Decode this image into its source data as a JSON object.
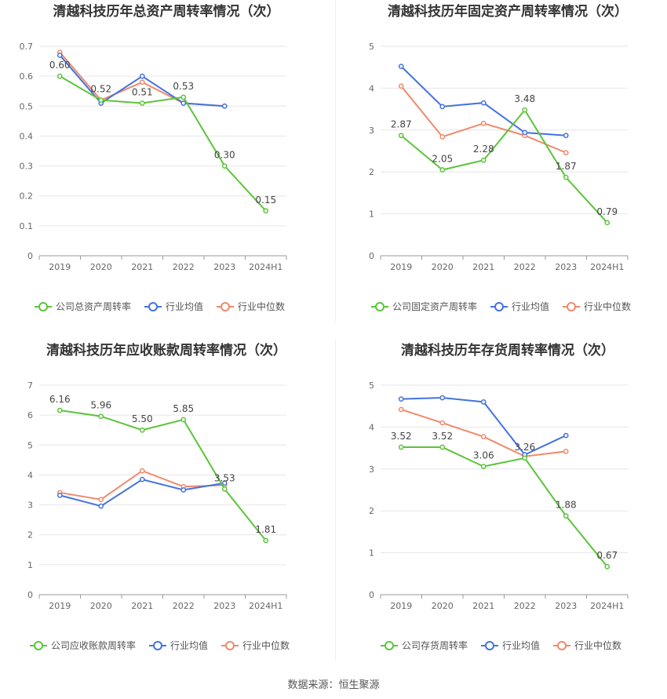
{
  "colors": {
    "company": "#5cc43a",
    "avg": "#4472e0",
    "median": "#f0896a",
    "grid": "#e6e6e6",
    "axis": "#999999",
    "text": "#666666",
    "label": "#444444"
  },
  "source_text": "数据来源：恒生聚源",
  "chart_data": [
    {
      "type": "line",
      "title": "清越科技历年总资产周转率情况（次）",
      "categories": [
        "2019",
        "2020",
        "2021",
        "2022",
        "2023",
        "2024H1"
      ],
      "ylim": [
        0,
        0.7
      ],
      "yticks": [
        "0",
        "0.1",
        "0.2",
        "0.3",
        "0.4",
        "0.5",
        "0.6",
        "0.7"
      ],
      "legend_position": "bottom",
      "series": [
        {
          "name": "公司总资产周转率",
          "color_key": "company",
          "values": [
            0.6,
            0.52,
            0.51,
            0.53,
            0.3,
            0.15
          ],
          "labels": [
            "0.60",
            "0.52",
            "0.51",
            "0.53",
            "0.30",
            "0.15"
          ]
        },
        {
          "name": "行业均值",
          "color_key": "avg",
          "values": [
            0.67,
            0.51,
            0.6,
            0.51,
            0.5,
            null
          ]
        },
        {
          "name": "行业中位数",
          "color_key": "median",
          "values": [
            0.68,
            0.52,
            0.58,
            0.51,
            0.5,
            null
          ]
        }
      ]
    },
    {
      "type": "line",
      "title": "清越科技历年固定资产周转率情况（次）",
      "categories": [
        "2019",
        "2020",
        "2021",
        "2022",
        "2023",
        "2024H1"
      ],
      "ylim": [
        0,
        5
      ],
      "yticks": [
        "0",
        "1",
        "2",
        "3",
        "4",
        "5"
      ],
      "legend_position": "bottom",
      "series": [
        {
          "name": "公司固定资产周转率",
          "color_key": "company",
          "values": [
            2.87,
            2.05,
            2.28,
            3.48,
            1.87,
            0.79
          ],
          "labels": [
            "2.87",
            "2.05",
            "2.28",
            "3.48",
            "1.87",
            "0.79"
          ]
        },
        {
          "name": "行业均值",
          "color_key": "avg",
          "values": [
            4.52,
            3.56,
            3.65,
            2.94,
            2.87,
            null
          ]
        },
        {
          "name": "行业中位数",
          "color_key": "median",
          "values": [
            4.05,
            2.84,
            3.16,
            2.87,
            2.46,
            null
          ]
        }
      ]
    },
    {
      "type": "line",
      "title": "清越科技历年应收账款周转率情况（次）",
      "categories": [
        "2019",
        "2020",
        "2021",
        "2022",
        "2023",
        "2024H1"
      ],
      "ylim": [
        0,
        7
      ],
      "yticks": [
        "0",
        "1",
        "2",
        "3",
        "4",
        "5",
        "6",
        "7"
      ],
      "legend_position": "bottom",
      "series": [
        {
          "name": "公司应收账款周转率",
          "color_key": "company",
          "values": [
            6.16,
            5.96,
            5.5,
            5.85,
            3.53,
            1.81
          ],
          "labels": [
            "6.16",
            "5.96",
            "5.50",
            "5.85",
            "3.53",
            "1.81"
          ]
        },
        {
          "name": "行业均值",
          "color_key": "avg",
          "values": [
            3.32,
            2.96,
            3.85,
            3.5,
            3.73,
            null
          ]
        },
        {
          "name": "行业中位数",
          "color_key": "median",
          "values": [
            3.41,
            3.18,
            4.14,
            3.61,
            3.66,
            null
          ]
        }
      ]
    },
    {
      "type": "line",
      "title": "清越科技历年存货周转率情况（次）",
      "categories": [
        "2019",
        "2020",
        "2021",
        "2022",
        "2023",
        "2024H1"
      ],
      "ylim": [
        0,
        5
      ],
      "yticks": [
        "0",
        "1",
        "2",
        "3",
        "4",
        "5"
      ],
      "legend_position": "bottom",
      "series": [
        {
          "name": "公司存货周转率",
          "color_key": "company",
          "values": [
            3.52,
            3.52,
            3.06,
            3.26,
            1.88,
            0.67
          ],
          "labels": [
            "3.52",
            "3.52",
            "3.06",
            "3.26",
            "1.88",
            "0.67"
          ]
        },
        {
          "name": "行业均值",
          "color_key": "avg",
          "values": [
            4.67,
            4.7,
            4.6,
            3.34,
            3.8,
            null
          ]
        },
        {
          "name": "行业中位数",
          "color_key": "median",
          "values": [
            4.42,
            4.1,
            3.77,
            3.3,
            3.42,
            null
          ]
        }
      ]
    }
  ]
}
